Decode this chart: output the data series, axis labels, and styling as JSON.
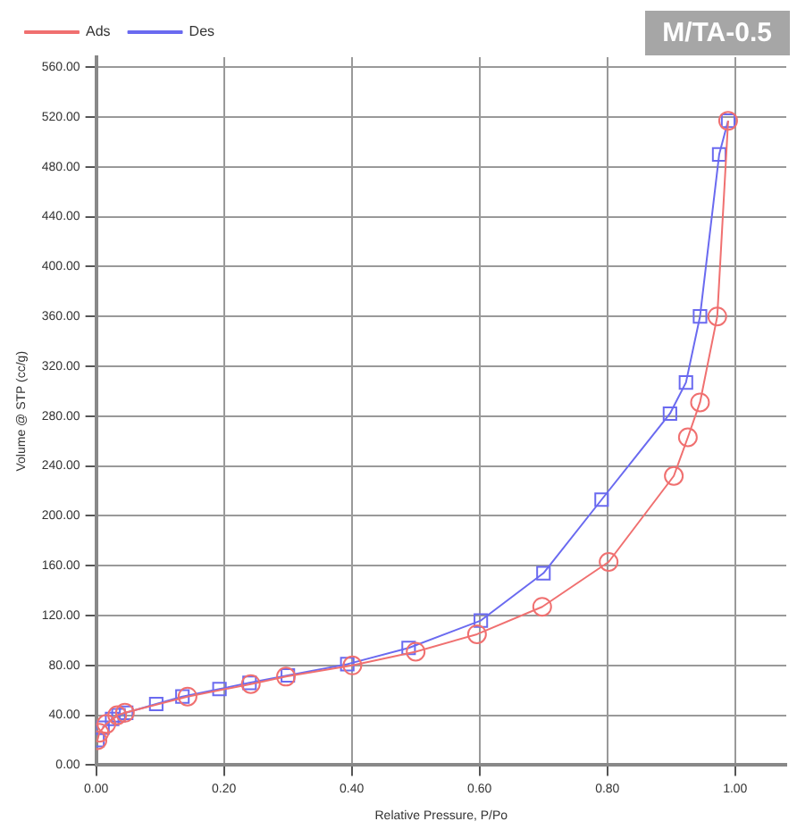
{
  "chart_data": {
    "type": "line",
    "title": "M/TA-0.5",
    "xlabel": "Relative Pressure, P/Po",
    "ylabel": "Volume @ STP (cc/g)",
    "series": [
      {
        "name": "Ads",
        "color": "#f07070",
        "marker": "circle",
        "x": [
          0.002,
          0.005,
          0.016,
          0.033,
          0.045,
          0.143,
          0.242,
          0.297,
          0.401,
          0.5,
          0.596,
          0.698,
          0.802,
          0.904,
          0.926,
          0.945,
          0.972,
          0.989
        ],
        "values": [
          20,
          26,
          33,
          40,
          42,
          55,
          65,
          71,
          80,
          91,
          105,
          127,
          163,
          232,
          263,
          291,
          360,
          517
        ]
      },
      {
        "name": "Des",
        "color": "#6a6af0",
        "marker": "square",
        "x": [
          0.989,
          0.975,
          0.945,
          0.923,
          0.898,
          0.791,
          0.7,
          0.602,
          0.489,
          0.393,
          0.3,
          0.24,
          0.193,
          0.135,
          0.094,
          0.047,
          0.035,
          0.025,
          0.01,
          0.004,
          0.002
        ],
        "values": [
          517,
          490,
          360,
          307,
          282,
          213,
          154,
          116,
          94,
          81,
          72,
          66,
          61,
          55,
          49,
          42,
          40,
          37,
          30,
          null,
          20
        ]
      }
    ],
    "xlim": [
      0,
      1.08
    ],
    "xticks": [
      {
        "value": 0,
        "label": "0.00"
      },
      {
        "value": 0.2,
        "label": "0.20"
      },
      {
        "value": 0.4,
        "label": "0.40"
      },
      {
        "value": 0.6,
        "label": "0.60"
      },
      {
        "value": 0.8,
        "label": "0.80"
      },
      {
        "value": 1,
        "label": "1.00"
      }
    ],
    "ylim": [
      0,
      568
    ],
    "yticks": [
      {
        "value": 0,
        "label": "0.00"
      },
      {
        "value": 40,
        "label": "40.00"
      },
      {
        "value": 80,
        "label": "80.00"
      },
      {
        "value": 120,
        "label": "120.00"
      },
      {
        "value": 160,
        "label": "160.00"
      },
      {
        "value": 200,
        "label": "200.00"
      },
      {
        "value": 240,
        "label": "240.00"
      },
      {
        "value": 280,
        "label": "280.00"
      },
      {
        "value": 320,
        "label": "320.00"
      },
      {
        "value": 360,
        "label": "360.00"
      },
      {
        "value": 400,
        "label": "400.00"
      },
      {
        "value": 440,
        "label": "440.00"
      },
      {
        "value": 480,
        "label": "480.00"
      },
      {
        "value": 520,
        "label": "520.00"
      },
      {
        "value": 560,
        "label": "560.00"
      }
    ],
    "grid": true,
    "legend": "top left",
    "line_style": "solid"
  }
}
